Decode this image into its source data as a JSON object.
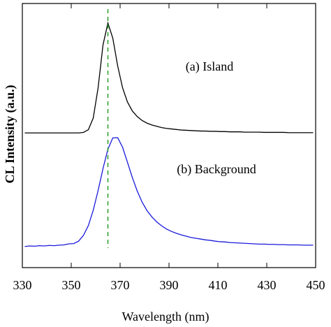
{
  "chart_data": {
    "type": "line",
    "x_label": "Wavelength (nm)",
    "y_label": "CL Intensity (a.u.)",
    "xlim": [
      330,
      450
    ],
    "xticks": [
      330,
      350,
      370,
      390,
      410,
      430,
      450
    ],
    "ylim": [
      0,
      1
    ],
    "x": [
      331,
      333,
      335,
      337,
      339,
      341,
      343,
      345,
      347,
      349,
      351,
      353,
      355,
      357,
      359,
      361,
      363,
      365,
      367,
      369,
      371,
      373,
      375,
      377,
      379,
      381,
      383,
      385,
      387,
      389,
      391,
      393,
      395,
      397,
      399,
      401,
      403,
      405,
      407,
      409,
      411,
      413,
      415,
      417,
      419,
      421,
      423,
      425,
      427,
      429,
      431,
      433,
      435,
      437,
      439,
      441,
      443,
      445,
      447,
      449
    ],
    "series": [
      {
        "name": "(a) Island",
        "color": "#000000",
        "values": [
          0.51,
          0.51,
          0.51,
          0.51,
          0.51,
          0.51,
          0.51,
          0.51,
          0.51,
          0.51,
          0.51,
          0.51,
          0.512,
          0.522,
          0.566,
          0.681,
          0.843,
          0.926,
          0.869,
          0.764,
          0.681,
          0.627,
          0.593,
          0.572,
          0.557,
          0.547,
          0.54,
          0.535,
          0.53,
          0.527,
          0.525,
          0.523,
          0.521,
          0.52,
          0.519,
          0.518,
          0.517,
          0.517,
          0.516,
          0.516,
          0.515,
          0.515,
          0.514,
          0.514,
          0.514,
          0.513,
          0.513,
          0.513,
          0.513,
          0.512,
          0.512,
          0.512,
          0.512,
          0.512,
          0.511,
          0.511,
          0.511,
          0.511,
          0.511,
          0.511
        ]
      },
      {
        "name": "(b) Background",
        "color": "#1a1adc",
        "values": [
          0.08,
          0.082,
          0.081,
          0.083,
          0.082,
          0.084,
          0.083,
          0.085,
          0.086,
          0.09,
          0.091,
          0.1,
          0.122,
          0.159,
          0.217,
          0.292,
          0.375,
          0.448,
          0.491,
          0.492,
          0.456,
          0.399,
          0.341,
          0.29,
          0.248,
          0.216,
          0.192,
          0.173,
          0.158,
          0.146,
          0.137,
          0.13,
          0.124,
          0.119,
          0.114,
          0.111,
          0.108,
          0.105,
          0.103,
          0.1,
          0.098,
          0.097,
          0.095,
          0.094,
          0.093,
          0.092,
          0.091,
          0.09,
          0.089,
          0.089,
          0.088,
          0.088,
          0.087,
          0.087,
          0.086,
          0.086,
          0.086,
          0.085,
          0.085,
          0.085
        ]
      }
    ],
    "reference_line": {
      "x": 365,
      "color": "#2a9d2a"
    }
  }
}
